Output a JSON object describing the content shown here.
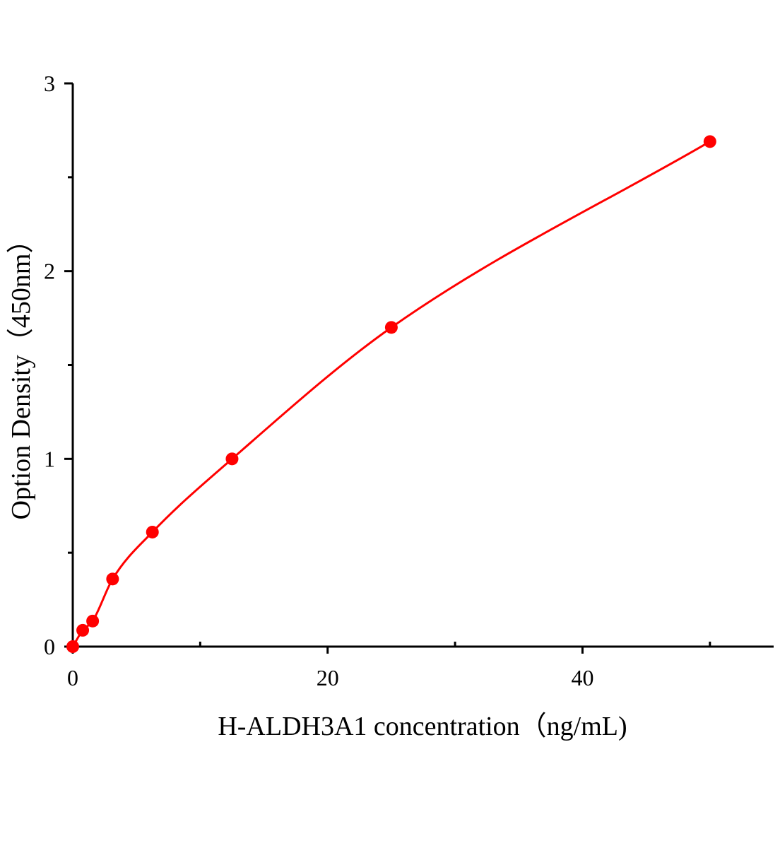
{
  "chart_data": {
    "type": "scatter",
    "title": "",
    "xlabel": "H-ALDH3A1 concentration（ng/mL)",
    "ylabel": "Option Density（450nm）",
    "xlim": [
      0,
      55
    ],
    "ylim": [
      0,
      3
    ],
    "x_ticks": [
      0,
      20,
      40
    ],
    "x_minor_ticks": [
      10,
      30,
      50
    ],
    "y_ticks": [
      0,
      1,
      2,
      3
    ],
    "y_minor_ticks": [
      0.5,
      1.5,
      2.5
    ],
    "grid": false,
    "series": [
      {
        "x": [
          0,
          0.78,
          1.56,
          3.125,
          6.25,
          12.5,
          25,
          50
        ],
        "y": [
          0,
          0.087,
          0.136,
          0.36,
          0.61,
          1.0,
          1.7,
          2.69
        ],
        "color": "#ff0000",
        "marker": "circle",
        "fit_line": true
      }
    ]
  }
}
